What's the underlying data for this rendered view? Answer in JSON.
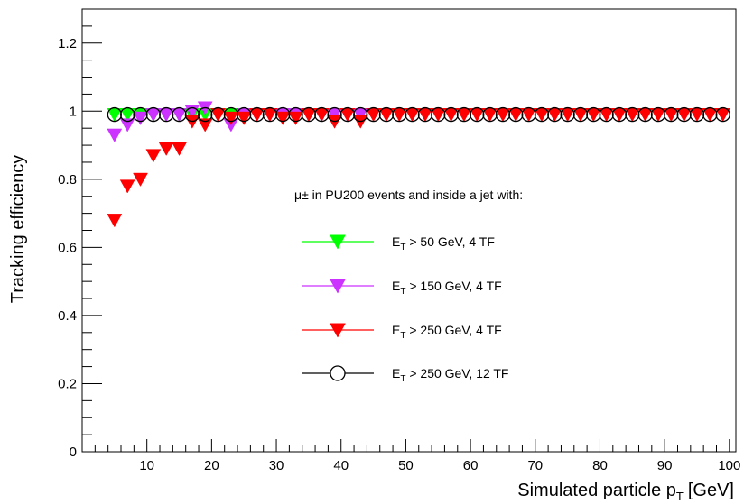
{
  "chart_data": {
    "type": "scatter",
    "title": "",
    "xlabel": "Simulated particle p",
    "xlabel_sub": "T",
    "xlabel_unit": "[GeV]",
    "ylabel": "Tracking efficiency",
    "xlim": [
      0,
      101
    ],
    "ylim": [
      0,
      1.3
    ],
    "x_ticks": [
      10,
      20,
      30,
      40,
      50,
      60,
      70,
      80,
      90,
      100
    ],
    "y_ticks": [
      0,
      0.2,
      0.4,
      0.6,
      0.8,
      1,
      1.2
    ],
    "x_tick_labels": [
      "10",
      "20",
      "30",
      "40",
      "50",
      "60",
      "70",
      "80",
      "90",
      "100"
    ],
    "y_tick_labels": [
      "0",
      "0.2",
      "0.4",
      "0.6",
      "0.8",
      "1",
      "1.2"
    ],
    "legend_title": "μ± in PU200 events and inside a jet with:",
    "legend_placement": "center-right",
    "series": [
      {
        "name_main": "E",
        "name_sub": "T",
        "name_rest": " > 50 GeV, 4 TF",
        "color": "#00ff00",
        "marker": "triangle-down-filled",
        "x": [
          5,
          7,
          9,
          11,
          13,
          15,
          17,
          19,
          21,
          23
        ],
        "y": [
          0.99,
          0.99,
          0.99,
          0.99,
          0.99,
          0.99,
          0.99,
          0.99,
          0.99,
          0.99
        ]
      },
      {
        "name_main": "E",
        "name_sub": "T",
        "name_rest": " > 150 GeV, 4 TF",
        "color": "#cc33ff",
        "marker": "triangle-down-filled",
        "x": [
          5,
          7,
          9,
          11,
          13,
          15,
          17,
          19,
          21,
          23,
          25,
          27,
          29,
          31,
          33,
          35,
          37,
          39,
          41,
          43
        ],
        "y": [
          0.93,
          0.96,
          0.98,
          0.99,
          0.99,
          0.99,
          1.0,
          1.01,
          0.99,
          0.96,
          0.99,
          0.99,
          0.99,
          0.99,
          0.99,
          0.99,
          0.99,
          0.99,
          0.99,
          0.99
        ]
      },
      {
        "name_main": "E",
        "name_sub": "T",
        "name_rest": " > 250 GeV, 4 TF",
        "color": "#ff0000",
        "marker": "triangle-down-filled",
        "x": [
          5,
          7,
          9,
          11,
          13,
          15,
          17,
          19,
          21,
          23,
          25,
          27,
          29,
          31,
          33,
          35,
          37,
          39,
          41,
          43,
          45,
          47,
          49,
          51,
          53,
          55,
          57,
          59,
          61,
          63,
          65,
          67,
          69,
          71,
          73,
          75,
          77,
          79,
          81,
          83,
          85,
          87,
          89,
          91,
          93,
          95,
          97,
          99
        ],
        "y": [
          0.68,
          0.78,
          0.8,
          0.87,
          0.89,
          0.89,
          0.97,
          0.96,
          0.99,
          0.98,
          0.98,
          0.99,
          0.99,
          0.98,
          0.98,
          0.99,
          0.99,
          0.97,
          0.99,
          0.97,
          0.99,
          0.99,
          0.99,
          0.99,
          0.99,
          0.99,
          0.99,
          0.99,
          0.99,
          0.99,
          0.99,
          0.99,
          0.99,
          0.99,
          0.99,
          0.99,
          0.99,
          0.99,
          0.99,
          0.99,
          0.99,
          0.99,
          0.99,
          0.99,
          0.99,
          0.99,
          0.99,
          0.99
        ]
      },
      {
        "name_main": "E",
        "name_sub": "T",
        "name_rest": " > 250 GeV, 12 TF",
        "color": "#000000",
        "marker": "circle-open",
        "x": [
          5,
          7,
          9,
          11,
          13,
          15,
          17,
          19,
          21,
          23,
          25,
          27,
          29,
          31,
          33,
          35,
          37,
          39,
          41,
          43,
          45,
          47,
          49,
          51,
          53,
          55,
          57,
          59,
          61,
          63,
          65,
          67,
          69,
          71,
          73,
          75,
          77,
          79,
          81,
          83,
          85,
          87,
          89,
          91,
          93,
          95,
          97,
          99
        ],
        "y": [
          0.99,
          0.99,
          0.99,
          0.99,
          0.99,
          0.99,
          0.99,
          0.99,
          0.99,
          0.99,
          0.99,
          0.99,
          0.99,
          0.99,
          0.99,
          0.99,
          0.99,
          0.99,
          0.99,
          0.99,
          0.99,
          0.99,
          0.99,
          0.99,
          0.99,
          0.99,
          0.99,
          0.99,
          0.99,
          0.99,
          0.99,
          0.99,
          0.99,
          0.99,
          0.99,
          0.99,
          0.99,
          0.99,
          0.99,
          0.99,
          0.99,
          0.99,
          0.99,
          0.99,
          0.99,
          0.99,
          0.99,
          0.99
        ]
      }
    ]
  }
}
